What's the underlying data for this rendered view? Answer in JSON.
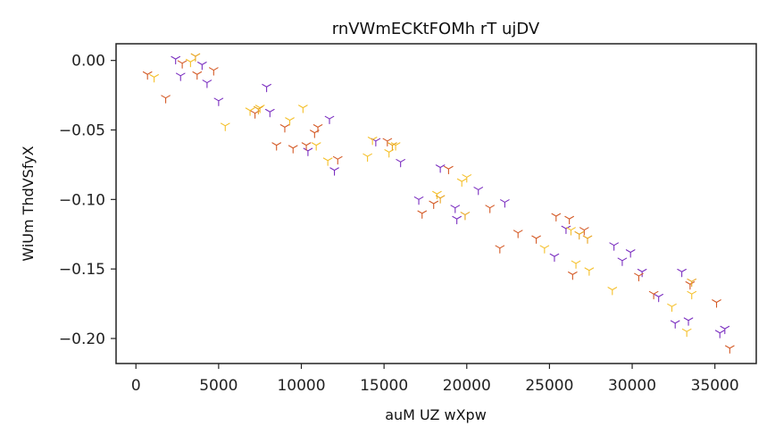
{
  "chart_data": {
    "type": "scatter",
    "title": "rnVWmECKtFOMh rT ujDV",
    "xlabel": "auM   UZ wXpw",
    "ylabel": "WiUm ThdVSfyX",
    "xlim": [
      -1200,
      37500
    ],
    "ylim": [
      -0.218,
      0.012
    ],
    "xticks": [
      0,
      5000,
      10000,
      15000,
      20000,
      25000,
      30000,
      35000
    ],
    "yticks": [
      0.0,
      -0.05,
      -0.1,
      -0.15,
      -0.2
    ],
    "xtick_labels": [
      "0",
      "5000",
      "10000",
      "15000",
      "20000",
      "25000",
      "30000",
      "35000"
    ],
    "ytick_labels": [
      "0.00",
      "−0.05",
      "−0.10",
      "−0.15",
      "−0.20"
    ],
    "grid": false,
    "legend": "none",
    "marker": "tri",
    "colors": [
      "#e8a31d",
      "#d45a26",
      "#7b2fc0",
      "#f5c02a",
      "#5a1f7a"
    ],
    "series": [
      {
        "color": "#7b2fc0",
        "x": [
          2400,
          2700,
          4000,
          4300,
          5000,
          7900,
          8100,
          10400,
          11700,
          12000,
          14500,
          16000,
          17100,
          18400,
          19300,
          19400,
          20700,
          22300,
          25300,
          26000,
          28900,
          29400,
          29900,
          30600,
          31600,
          32600,
          33000,
          33400,
          35300,
          35600
        ],
        "y": [
          0.001,
          -0.011,
          -0.003,
          -0.016,
          -0.029,
          -0.019,
          -0.037,
          -0.065,
          -0.042,
          -0.079,
          -0.058,
          -0.073,
          -0.1,
          -0.077,
          -0.106,
          -0.114,
          -0.093,
          -0.102,
          -0.141,
          -0.121,
          -0.133,
          -0.144,
          -0.138,
          -0.152,
          -0.17,
          -0.189,
          -0.152,
          -0.187,
          -0.196,
          -0.193
        ]
      },
      {
        "color": "#d45a26",
        "x": [
          700,
          1800,
          2800,
          3700,
          4700,
          7200,
          8500,
          9000,
          9500,
          10300,
          10800,
          11000,
          12200,
          15200,
          17300,
          18000,
          18900,
          21400,
          22000,
          23100,
          24200,
          25400,
          26200,
          26400,
          27100,
          30400,
          31300,
          33500,
          35100,
          35900
        ],
        "y": [
          -0.01,
          -0.027,
          -0.002,
          -0.01,
          -0.007,
          -0.038,
          -0.061,
          -0.048,
          -0.063,
          -0.061,
          -0.052,
          -0.048,
          -0.071,
          -0.058,
          -0.11,
          -0.103,
          -0.078,
          -0.106,
          -0.135,
          -0.124,
          -0.128,
          -0.112,
          -0.114,
          -0.154,
          -0.122,
          -0.155,
          -0.168,
          -0.161,
          -0.174,
          -0.207
        ]
      },
      {
        "color": "#f5c02a",
        "x": [
          1100,
          3300,
          5400,
          6900,
          7500,
          9300,
          10100,
          10900,
          11600,
          14000,
          14300,
          15300,
          15700,
          18200,
          19700,
          20000,
          24700,
          26300,
          26600,
          27400,
          28800,
          32400,
          33300,
          33600
        ],
        "y": [
          -0.012,
          -0.001,
          -0.047,
          -0.036,
          -0.034,
          -0.043,
          -0.034,
          -0.061,
          -0.072,
          -0.069,
          -0.057,
          -0.066,
          -0.061,
          -0.096,
          -0.087,
          -0.084,
          -0.135,
          -0.122,
          -0.146,
          -0.151,
          -0.165,
          -0.177,
          -0.195,
          -0.168
        ]
      },
      {
        "color": "#e8a31d",
        "x": [
          3600,
          7400,
          15500,
          18400,
          19900,
          26800,
          27300,
          33600
        ],
        "y": [
          0.003,
          -0.035,
          -0.061,
          -0.099,
          -0.111,
          -0.125,
          -0.128,
          -0.159
        ]
      }
    ]
  }
}
